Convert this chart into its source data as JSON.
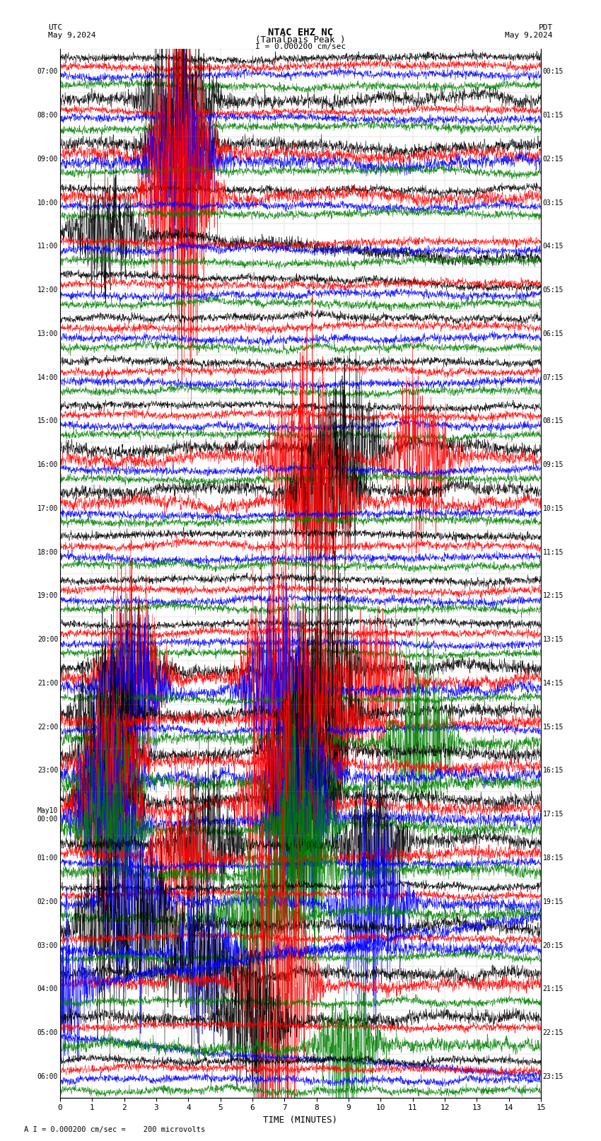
{
  "title_line1": "NTAC EHZ NC",
  "title_line2": "(Tanalpais Peak )",
  "scale_text": "I = 0.000200 cm/sec",
  "bottom_label": "A I = 0.000200 cm/sec =    200 microvolts",
  "xlabel": "TIME (MINUTES)",
  "utc_times": [
    "07:00",
    "08:00",
    "09:00",
    "10:00",
    "11:00",
    "12:00",
    "13:00",
    "14:00",
    "15:00",
    "16:00",
    "17:00",
    "18:00",
    "19:00",
    "20:00",
    "21:00",
    "22:00",
    "23:00",
    "May10\n00:00",
    "01:00",
    "02:00",
    "03:00",
    "04:00",
    "05:00",
    "06:00"
  ],
  "pdt_times": [
    "00:15",
    "01:15",
    "02:15",
    "03:15",
    "04:15",
    "05:15",
    "06:15",
    "07:15",
    "08:15",
    "09:15",
    "10:15",
    "11:15",
    "12:15",
    "13:15",
    "14:15",
    "15:15",
    "16:15",
    "17:15",
    "18:15",
    "19:15",
    "20:15",
    "21:15",
    "22:15",
    "23:15"
  ],
  "colors": [
    "black",
    "red",
    "blue",
    "green"
  ],
  "n_rows": 24,
  "n_traces_per_row": 4,
  "x_min": 0,
  "x_max": 15,
  "x_ticks": [
    0,
    1,
    2,
    3,
    4,
    5,
    6,
    7,
    8,
    9,
    10,
    11,
    12,
    13,
    14,
    15
  ],
  "bg_color": "#ffffff",
  "grid_color": "#888888",
  "trace_amplitude": 0.18,
  "fig_width": 8.5,
  "fig_height": 16.13,
  "dpi": 100
}
